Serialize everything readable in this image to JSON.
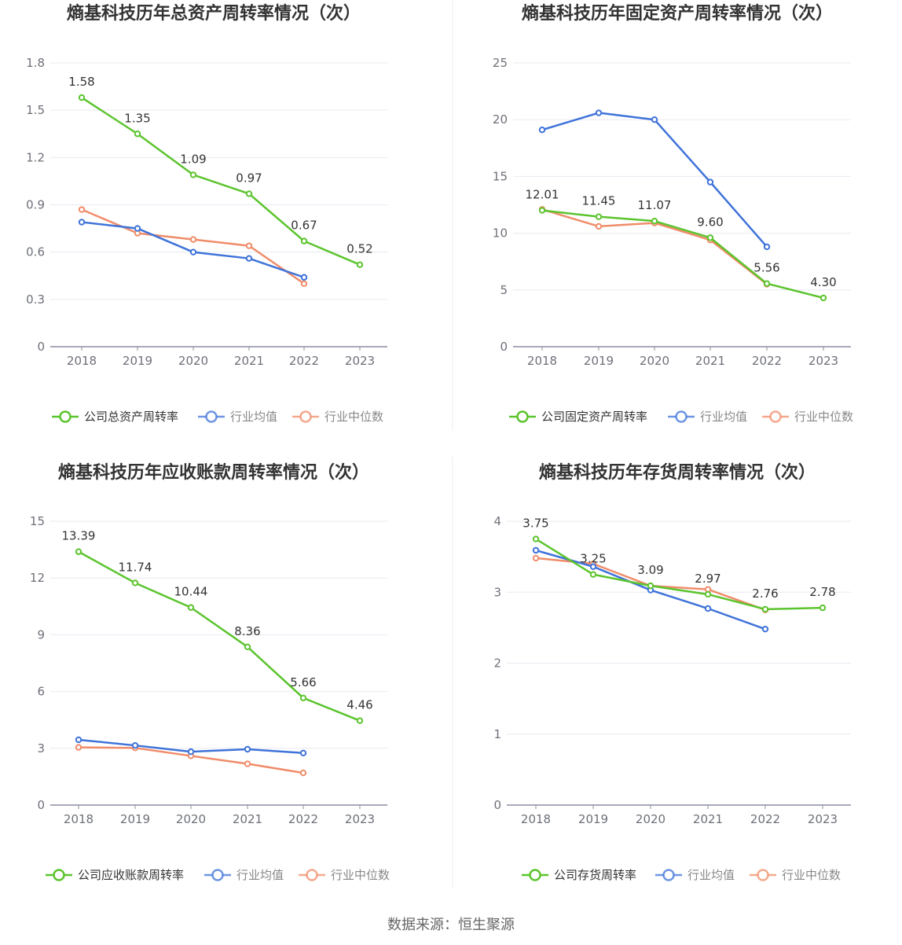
{
  "source": "数据来源：恒生聚源",
  "colors": {
    "company": "#5cc42e",
    "avg": "#3f73d9",
    "median": "#f08c6a",
    "grid": "#e8e9f2",
    "axis": "#8c8ea0"
  },
  "chart_data": [
    {
      "type": "line",
      "title": "熵基科技历年总资产周转率情况（次）",
      "categories": [
        "2018",
        "2019",
        "2020",
        "2021",
        "2022",
        "2023"
      ],
      "ylim": [
        0,
        1.8
      ],
      "yticks": [
        "0",
        "0.3",
        "0.6",
        "0.9",
        "1.2",
        "1.5",
        "1.8"
      ],
      "series": [
        {
          "name": "公司总资产周转率",
          "values": [
            1.58,
            1.35,
            1.09,
            0.97,
            0.67,
            0.52
          ],
          "labels": [
            "1.58",
            "1.35",
            "1.09",
            "0.97",
            "0.67",
            "0.52"
          ]
        },
        {
          "name": "行业均值",
          "values": [
            0.79,
            0.75,
            0.6,
            0.56,
            0.44,
            null
          ]
        },
        {
          "name": "行业中位数",
          "values": [
            0.87,
            0.72,
            0.68,
            0.64,
            0.4,
            null
          ]
        }
      ],
      "legend": "bottom",
      "grid": true
    },
    {
      "type": "line",
      "title": "熵基科技历年固定资产周转率情况（次）",
      "categories": [
        "2018",
        "2019",
        "2020",
        "2021",
        "2022",
        "2023"
      ],
      "ylim": [
        0,
        25
      ],
      "yticks": [
        "0",
        "5",
        "10",
        "15",
        "20",
        "25"
      ],
      "series": [
        {
          "name": "公司固定资产周转率",
          "values": [
            12.01,
            11.45,
            11.07,
            9.6,
            5.56,
            4.3
          ],
          "labels": [
            "12.01",
            "11.45",
            "11.07",
            "9.60",
            "5.56",
            "4.30"
          ]
        },
        {
          "name": "行业均值",
          "values": [
            19.1,
            20.6,
            20.0,
            14.5,
            8.8,
            null
          ]
        },
        {
          "name": "行业中位数",
          "values": [
            12.1,
            10.6,
            10.9,
            9.4,
            5.5,
            null
          ]
        }
      ],
      "legend": "bottom",
      "grid": true
    },
    {
      "type": "line",
      "title": "熵基科技历年应收账款周转率情况（次）",
      "categories": [
        "2018",
        "2019",
        "2020",
        "2021",
        "2022",
        "2023"
      ],
      "ylim": [
        0,
        15
      ],
      "yticks": [
        "0",
        "3",
        "6",
        "9",
        "12",
        "15"
      ],
      "series": [
        {
          "name": "公司应收账款周转率",
          "values": [
            13.39,
            11.74,
            10.44,
            8.36,
            5.66,
            4.46
          ],
          "labels": [
            "13.39",
            "11.74",
            "10.44",
            "8.36",
            "5.66",
            "4.46"
          ]
        },
        {
          "name": "行业均值",
          "values": [
            3.45,
            3.15,
            2.82,
            2.95,
            2.75,
            null
          ]
        },
        {
          "name": "行业中位数",
          "values": [
            3.05,
            3.02,
            2.6,
            2.18,
            1.7,
            null
          ]
        }
      ],
      "legend": "bottom",
      "grid": true
    },
    {
      "type": "line",
      "title": "熵基科技历年存货周转率情况（次）",
      "categories": [
        "2018",
        "2019",
        "2020",
        "2021",
        "2022",
        "2023"
      ],
      "ylim": [
        0,
        4
      ],
      "yticks": [
        "0",
        "1",
        "2",
        "3",
        "4"
      ],
      "series": [
        {
          "name": "公司存货周转率",
          "values": [
            3.75,
            3.25,
            3.09,
            2.97,
            2.76,
            2.78
          ],
          "labels": [
            "3.75",
            "3.25",
            "3.09",
            "2.97",
            "2.76",
            "2.78"
          ]
        },
        {
          "name": "行业均值",
          "values": [
            3.59,
            3.36,
            3.03,
            2.77,
            2.48,
            null
          ]
        },
        {
          "name": "行业中位数",
          "values": [
            3.48,
            3.4,
            3.09,
            3.04,
            2.75,
            null
          ]
        }
      ],
      "legend": "bottom",
      "grid": true
    }
  ]
}
